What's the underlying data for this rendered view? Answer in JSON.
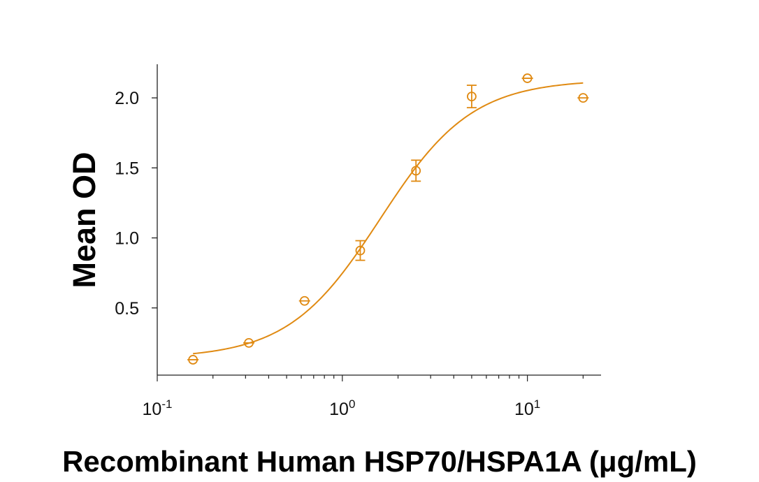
{
  "chart_data": {
    "type": "scatter",
    "xlabel": "Recombinant Human HSP70/HSPA1A (μg/mL)",
    "ylabel": "Mean OD",
    "x_scale": "log",
    "xlim": [
      0.1,
      25
    ],
    "ylim": [
      0.02,
      2.24
    ],
    "x_ticks": [
      {
        "value": 0.1,
        "base": "10",
        "exp": "-1"
      },
      {
        "value": 1,
        "base": "10",
        "exp": "0"
      },
      {
        "value": 10,
        "base": "10",
        "exp": "1"
      }
    ],
    "y_ticks": [
      {
        "value": 0.5,
        "label": "0.5"
      },
      {
        "value": 1.0,
        "label": "1.0"
      },
      {
        "value": 1.5,
        "label": "1.5"
      },
      {
        "value": 2.0,
        "label": "2.0"
      }
    ],
    "grid": false,
    "color": "#E08A12",
    "series": [
      {
        "x": [
          0.156,
          0.3125,
          0.625,
          1.25,
          2.5,
          5,
          10,
          20
        ],
        "y": [
          0.13,
          0.25,
          0.55,
          0.91,
          1.48,
          2.01,
          2.14,
          2.0
        ],
        "error": [
          0.0,
          0.0,
          0.0,
          0.07,
          0.075,
          0.08,
          0.0,
          0.0
        ]
      }
    ],
    "fit_curve": {
      "type": "4PL",
      "bottom": 0.14,
      "top": 2.13,
      "ec50": 1.6,
      "hill": 1.75,
      "x_range": [
        0.156,
        20
      ]
    }
  }
}
